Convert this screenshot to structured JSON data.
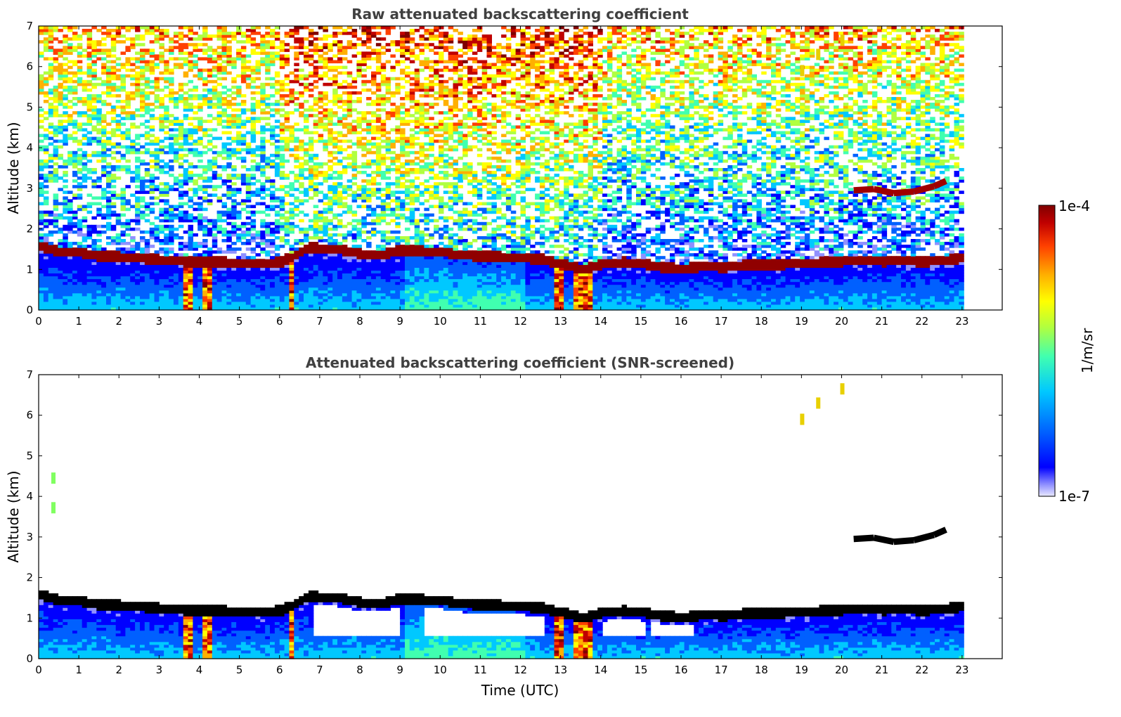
{
  "chart_data": [
    {
      "type": "heatmap",
      "title": "Raw attenuated backscattering coefficient",
      "xlabel": "",
      "ylabel": "Altitude (km)",
      "xlim": [
        0,
        24
      ],
      "ylim": [
        0,
        7
      ],
      "xticks": [
        "0",
        "1",
        "2",
        "3",
        "4",
        "5",
        "6",
        "7",
        "8",
        "9",
        "10",
        "11",
        "12",
        "13",
        "14",
        "15",
        "16",
        "17",
        "18",
        "19",
        "20",
        "21",
        "22",
        "23"
      ],
      "yticks": [
        "0",
        "1",
        "2",
        "3",
        "4",
        "5",
        "6",
        "7"
      ],
      "data_end_time": 22.95,
      "screened": false,
      "cloud_base_km": [
        [
          0.0,
          1.55
        ],
        [
          0.5,
          1.4
        ],
        [
          1.0,
          1.38
        ],
        [
          1.5,
          1.3
        ],
        [
          2.0,
          1.28
        ],
        [
          2.5,
          1.25
        ],
        [
          3.0,
          1.2
        ],
        [
          3.5,
          1.17
        ],
        [
          4.0,
          1.15
        ],
        [
          4.5,
          1.15
        ],
        [
          5.0,
          1.12
        ],
        [
          5.5,
          1.12
        ],
        [
          6.0,
          1.15
        ],
        [
          6.3,
          1.3
        ],
        [
          6.7,
          1.5
        ],
        [
          7.0,
          1.48
        ],
        [
          7.5,
          1.45
        ],
        [
          8.0,
          1.35
        ],
        [
          8.5,
          1.33
        ],
        [
          9.0,
          1.45
        ],
        [
          9.5,
          1.42
        ],
        [
          10.0,
          1.4
        ],
        [
          10.5,
          1.32
        ],
        [
          11.0,
          1.3
        ],
        [
          11.5,
          1.28
        ],
        [
          12.0,
          1.25
        ],
        [
          12.5,
          1.22
        ],
        [
          13.0,
          1.1
        ],
        [
          13.5,
          0.95
        ],
        [
          14.0,
          1.1
        ],
        [
          14.5,
          1.15
        ],
        [
          15.0,
          1.1
        ],
        [
          15.5,
          1.02
        ],
        [
          16.0,
          0.98
        ],
        [
          16.5,
          1.05
        ],
        [
          17.0,
          1.02
        ],
        [
          17.5,
          1.08
        ],
        [
          18.0,
          1.1
        ],
        [
          18.5,
          1.1
        ],
        [
          19.0,
          1.12
        ],
        [
          19.5,
          1.15
        ],
        [
          20.0,
          1.17
        ],
        [
          20.5,
          1.2
        ],
        [
          21.0,
          1.17
        ],
        [
          21.5,
          1.2
        ],
        [
          22.0,
          1.15
        ],
        [
          22.5,
          1.2
        ],
        [
          22.95,
          1.25
        ]
      ],
      "upper_layer_km": [
        [
          20.3,
          2.95
        ],
        [
          20.8,
          2.98
        ],
        [
          21.3,
          2.88
        ],
        [
          21.8,
          2.92
        ],
        [
          22.3,
          3.05
        ],
        [
          22.6,
          3.18
        ]
      ],
      "elevated_aerosol_km": [
        [
          19.0,
          5.9
        ],
        [
          19.4,
          6.3
        ],
        [
          20.0,
          6.65
        ]
      ],
      "precipitation_shafts_utc": [
        [
          3.55,
          3.75
        ],
        [
          4.05,
          4.25
        ],
        [
          6.15,
          6.35
        ],
        [
          12.8,
          13.0
        ],
        [
          13.3,
          13.7
        ]
      ]
    },
    {
      "type": "heatmap",
      "title": "Attenuated backscattering coefficient (SNR-screened)",
      "xlabel": "Time (UTC)",
      "ylabel": "Altitude (km)",
      "xlim": [
        0,
        24
      ],
      "ylim": [
        0,
        7
      ],
      "xticks": [
        "0",
        "1",
        "2",
        "3",
        "4",
        "5",
        "6",
        "7",
        "8",
        "9",
        "10",
        "11",
        "12",
        "13",
        "14",
        "15",
        "16",
        "17",
        "18",
        "19",
        "20",
        "21",
        "22",
        "23"
      ],
      "yticks": [
        "0",
        "1",
        "2",
        "3",
        "4",
        "5",
        "6",
        "7"
      ],
      "data_end_time": 22.95,
      "screened": true,
      "screened_gaps_utc": [
        [
          6.8,
          9.0
        ],
        [
          9.5,
          12.5
        ],
        [
          14.0,
          15.0
        ],
        [
          15.2,
          16.2
        ]
      ],
      "elevated_aerosol_km": [
        [
          0.35,
          4.45
        ],
        [
          0.35,
          3.72
        ],
        [
          19.0,
          5.9
        ],
        [
          19.4,
          6.3
        ],
        [
          20.0,
          6.65
        ]
      ]
    }
  ],
  "colorbar": {
    "label": "1/m/sr",
    "max_label": "1e-4",
    "min_label": "1e-7",
    "scale": "log",
    "colors": [
      "#e8e8ff",
      "#9090ff",
      "#0000ff",
      "#0060ff",
      "#00c8ff",
      "#40ffb0",
      "#b0ff40",
      "#ffff00",
      "#ffb000",
      "#ff4000",
      "#c00000",
      "#800000"
    ]
  }
}
